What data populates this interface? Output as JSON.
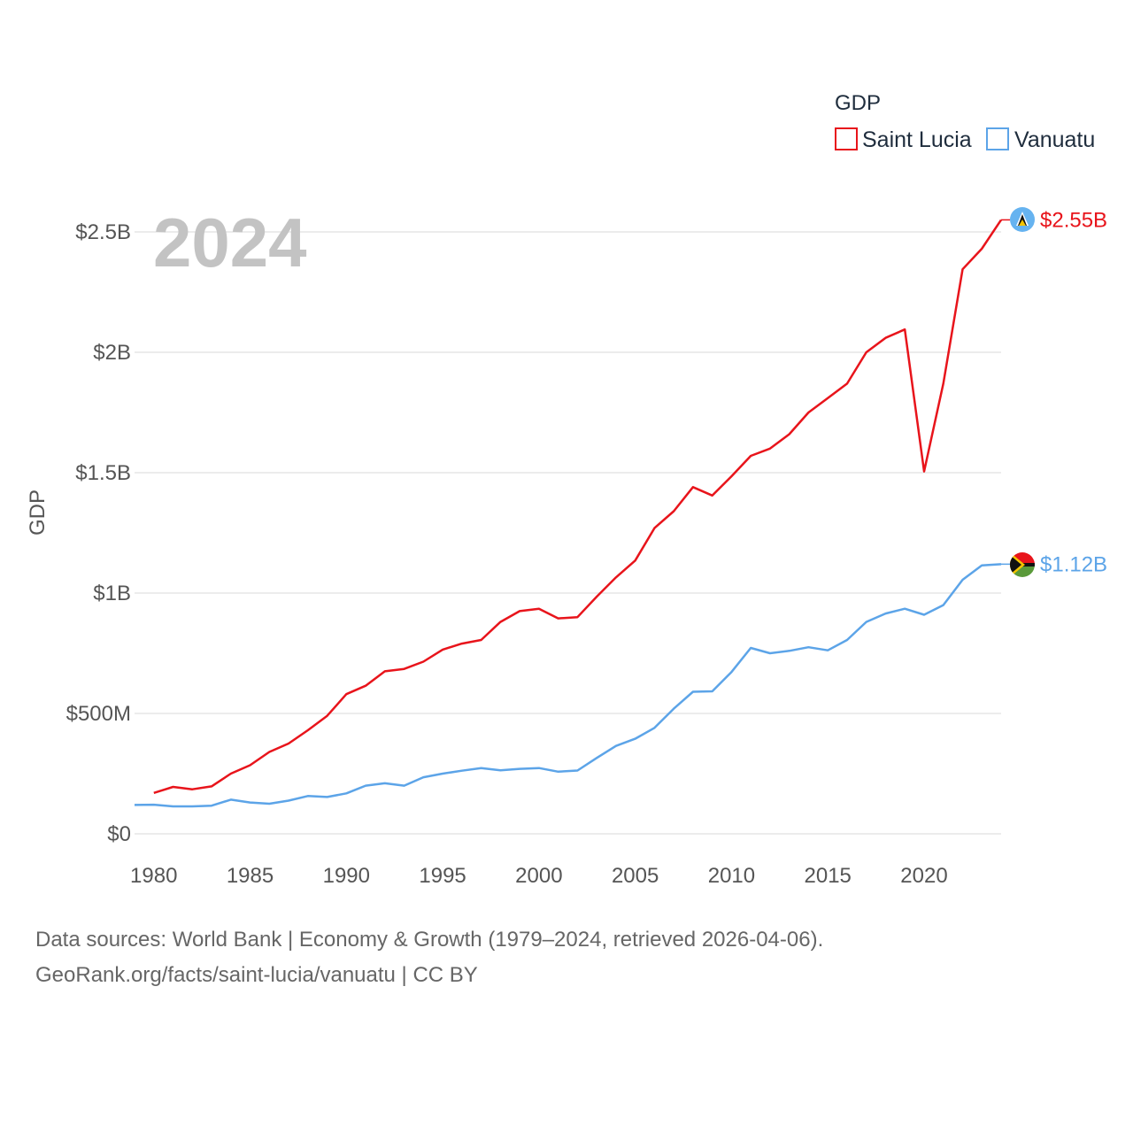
{
  "chart_data": {
    "type": "line",
    "title": "GDP",
    "year_label": "2024",
    "xlabel": "",
    "ylabel": "GDP",
    "xlim": [
      1979,
      2024
    ],
    "ylim": [
      0,
      2700000000
    ],
    "x_ticks": [
      1980,
      1985,
      1990,
      1995,
      2000,
      2005,
      2010,
      2015,
      2020
    ],
    "x_tick_labels": [
      "1980",
      "1985",
      "1990",
      "1995",
      "2000",
      "2005",
      "2010",
      "2015",
      "2020"
    ],
    "y_ticks": [
      0,
      500000000,
      1000000000,
      1500000000,
      2000000000,
      2500000000
    ],
    "y_tick_labels": [
      "$0",
      "$500M",
      "$1B",
      "$1.5B",
      "$2B",
      "$2.5B"
    ],
    "legend": {
      "title": "GDP",
      "placement": "top-right"
    },
    "series": [
      {
        "name": "Saint Lucia",
        "color": "#e8141b",
        "end_label": "$2.55B",
        "flag_icon": "saint-lucia-flag-icon",
        "x": [
          1980,
          1981,
          1982,
          1983,
          1984,
          1985,
          1986,
          1987,
          1988,
          1989,
          1990,
          1991,
          1992,
          1993,
          1994,
          1995,
          1996,
          1997,
          1998,
          1999,
          2000,
          2001,
          2002,
          2003,
          2004,
          2005,
          2006,
          2007,
          2008,
          2009,
          2010,
          2011,
          2012,
          2013,
          2014,
          2015,
          2016,
          2017,
          2018,
          2019,
          2020,
          2021,
          2022,
          2023,
          2024
        ],
        "values": [
          170000000,
          195000000,
          185000000,
          197000000,
          250000000,
          285000000,
          340000000,
          375000000,
          430000000,
          490000000,
          580000000,
          615000000,
          675000000,
          685000000,
          715000000,
          765000000,
          790000000,
          805000000,
          880000000,
          925000000,
          935000000,
          895000000,
          900000000,
          985000000,
          1065000000,
          1135000000,
          1270000000,
          1340000000,
          1440000000,
          1405000000,
          1485000000,
          1570000000,
          1600000000,
          1660000000,
          1750000000,
          1810000000,
          1870000000,
          2000000000,
          2060000000,
          2095000000,
          1505000000,
          1870000000,
          2345000000,
          2430000000,
          2550000000
        ]
      },
      {
        "name": "Vanuatu",
        "color": "#5ca4e8",
        "end_label": "$1.12B",
        "flag_icon": "vanuatu-flag-icon",
        "x": [
          1979,
          1980,
          1981,
          1982,
          1983,
          1984,
          1985,
          1986,
          1987,
          1988,
          1989,
          1990,
          1991,
          1992,
          1993,
          1994,
          1995,
          1996,
          1997,
          1998,
          1999,
          2000,
          2001,
          2002,
          2003,
          2004,
          2005,
          2006,
          2007,
          2008,
          2009,
          2010,
          2011,
          2012,
          2013,
          2014,
          2015,
          2016,
          2017,
          2018,
          2019,
          2020,
          2021,
          2022,
          2023,
          2024
        ],
        "values": [
          120000000,
          121000000,
          114000000,
          114000000,
          117000000,
          142000000,
          130000000,
          125000000,
          138000000,
          157000000,
          153000000,
          168000000,
          200000000,
          210000000,
          200000000,
          235000000,
          250000000,
          262000000,
          273000000,
          264000000,
          270000000,
          273000000,
          258000000,
          263000000,
          315000000,
          365000000,
          395000000,
          440000000,
          520000000,
          590000000,
          592000000,
          672000000,
          772000000,
          750000000,
          760000000,
          775000000,
          762000000,
          805000000,
          880000000,
          915000000,
          935000000,
          910000000,
          950000000,
          1055000000,
          1115000000,
          1120000000
        ]
      }
    ]
  },
  "source": {
    "line1": "Data sources: World Bank | Economy & Growth (1979–2024, retrieved 2026-04-06).",
    "line2": "GeoRank.org/facts/saint-lucia/vanuatu | CC BY"
  }
}
